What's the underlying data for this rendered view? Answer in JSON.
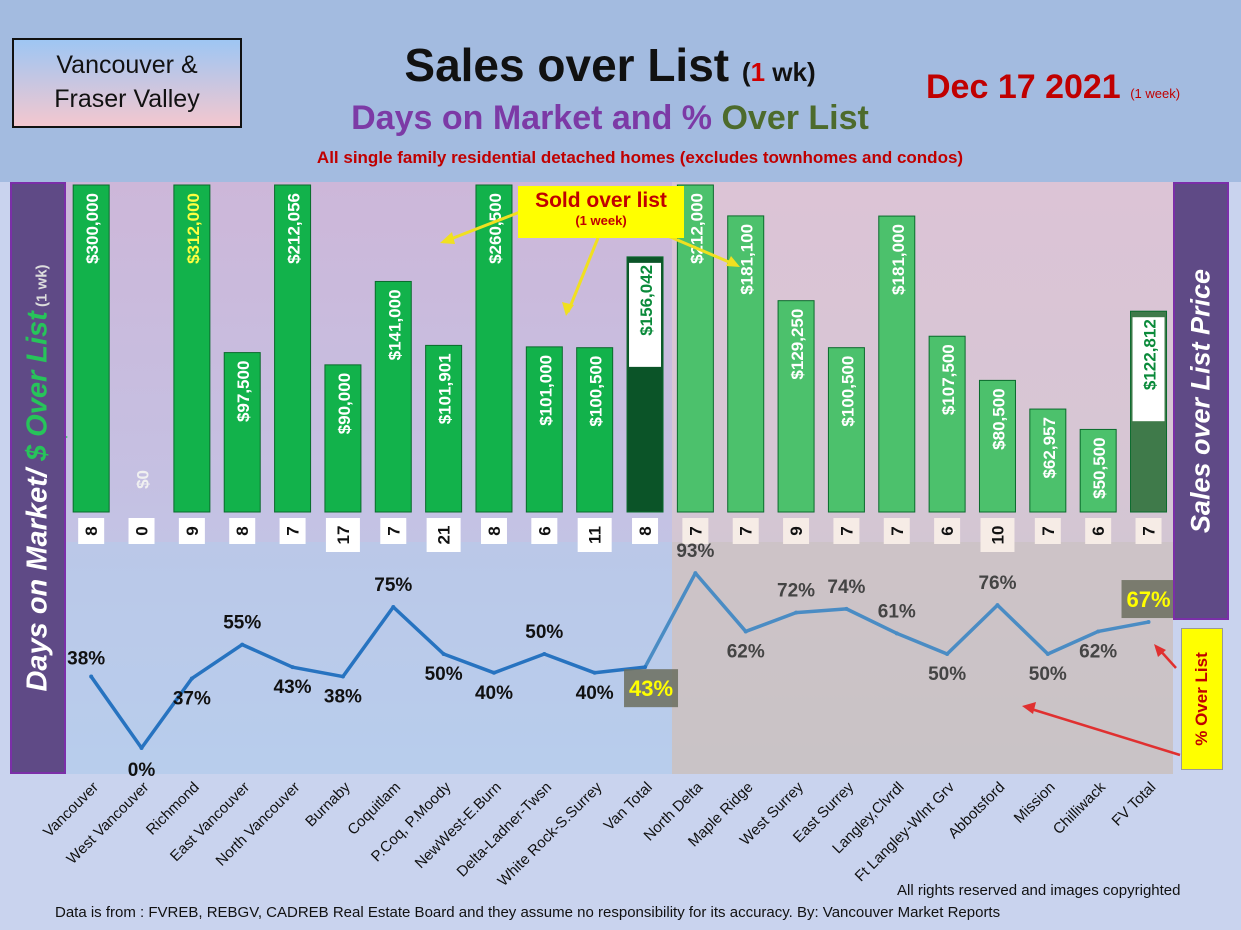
{
  "header": {
    "region_line1": "Vancouver &",
    "region_line2": "Fraser Valley",
    "title_main": "Sales over List",
    "title_paren_open": "(",
    "title_paren_num": "1",
    "title_paren_rest": " wk)",
    "subtitle_part1": "Days on Market and % ",
    "subtitle_part2": "Over List",
    "note": "All single family residential detached homes (excludes townhomes and condos)",
    "date": "Dec 17  2021",
    "date_note": "(1 week)"
  },
  "side_labels": {
    "left_part1": "Days on Market/ ",
    "left_part2": "$ Over List",
    "left_part3": " (1 wk)",
    "right": "Sales over List Price",
    "pct": "% Over List"
  },
  "callout": {
    "title": "Sold over list",
    "sub": "(1 week)"
  },
  "footer": {
    "rights": "All rights reserved and  images copyrighted",
    "source": "Data is from : FVREB, REBGV, CADREB Real Estate Board and they assume no responsibility for its accuracy. By: Vancouver Market Reports"
  },
  "colors": {
    "bar_green": "#12b24b",
    "bar_fv": "#4cc16c",
    "bar_van_total": "#0b5428",
    "bar_fv_total": "#3f7a4a",
    "line": "#2773c0",
    "line_fv": "#4a8cc4",
    "pct_highlight": "#ffff00"
  },
  "chart_data": {
    "type": "bar+line",
    "title": "Sales over List (1 wk)",
    "bar_series_name": "$ Over List (1 wk)",
    "dom_series_name": "Days on Market",
    "line_series_name": "% Over List",
    "categories": [
      "Vancouver",
      "West Vancouver",
      "Richmond",
      "East Vancouver",
      "North Vancouver",
      "Burnaby",
      "Coquitlam",
      "P.Coq, P.Moody",
      "NewWest-E.Burn",
      "Delta-Ladner-Twsn",
      "White Rock-S.Surrey",
      "Van Total",
      "North Delta",
      "Maple Ridge",
      "West Surrey",
      "East Surrey",
      "Langley,Clvrdl",
      "Ft Langley-Wlnt Grv",
      "Abbotsford",
      "Mission",
      "Chilliwack",
      "FV Total"
    ],
    "bar_values": [
      300000,
      0,
      312000,
      97500,
      212056,
      90000,
      141000,
      101901,
      260500,
      101000,
      100500,
      156042,
      212000,
      181100,
      129250,
      100500,
      181000,
      107500,
      80500,
      62957,
      50500,
      122812
    ],
    "bar_labels": [
      "$300,000",
      "$0",
      "$312,000",
      "$97,500",
      "$212,056",
      "$90,000",
      "$141,000",
      "$101,901",
      "$260,500",
      "$101,000",
      "$100,500",
      "$156,042",
      "$212,000",
      "$181,100",
      "$129,250",
      "$100,500",
      "$181,000",
      "$107,500",
      "$80,500",
      "$62,957",
      "$50,500",
      "$122,812"
    ],
    "bar_axis_max": 200000,
    "dom_values": [
      8,
      0,
      9,
      8,
      7,
      17,
      7,
      21,
      8,
      6,
      11,
      8,
      7,
      7,
      9,
      7,
      7,
      6,
      10,
      7,
      6,
      7
    ],
    "dom_labels": [
      "8",
      "0",
      "9",
      "8",
      "7",
      "17",
      "7",
      "21",
      "8",
      "6",
      "11",
      "8",
      "7",
      "7",
      "9",
      "7",
      "7",
      "6",
      "10",
      "7",
      "6",
      "7"
    ],
    "pct_values": [
      38,
      0,
      37,
      55,
      43,
      38,
      75,
      50,
      40,
      50,
      40,
      43,
      93,
      62,
      72,
      74,
      61,
      50,
      76,
      50,
      62,
      67
    ],
    "pct_labels": [
      "38%",
      "0%",
      "37%",
      "55%",
      "43%",
      "38%",
      "75%",
      "50%",
      "40%",
      "50%",
      "40%",
      "43%",
      "93%",
      "62%",
      "72%",
      "74%",
      "61%",
      "50%",
      "76%",
      "50%",
      "62%",
      "67%"
    ],
    "pct_axis": [
      0,
      100
    ]
  }
}
